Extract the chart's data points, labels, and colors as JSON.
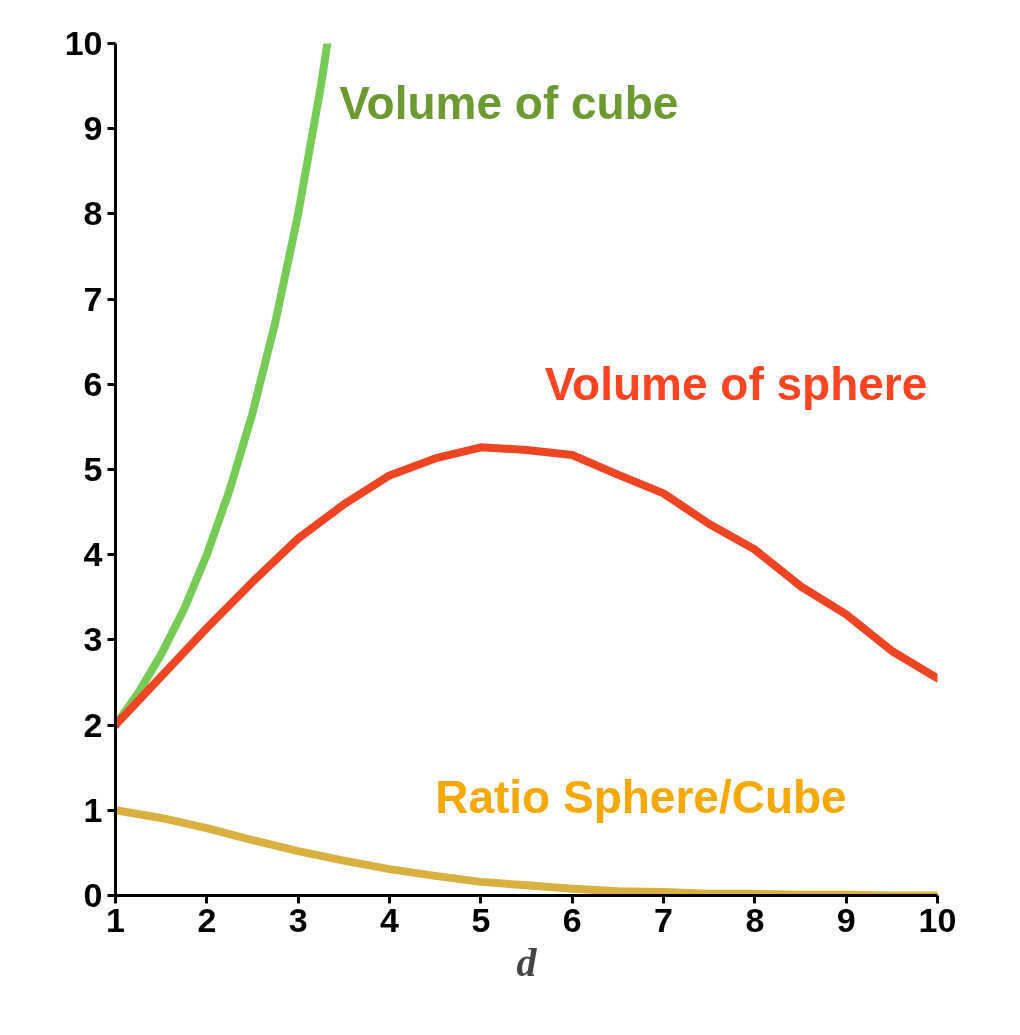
{
  "chart_data": {
    "type": "line",
    "xlabel": "d",
    "xlim": [
      1,
      10
    ],
    "ylim": [
      0,
      10
    ],
    "xticks": [
      1,
      2,
      3,
      4,
      5,
      6,
      7,
      8,
      9,
      10
    ],
    "yticks": [
      0,
      1,
      2,
      3,
      4,
      5,
      6,
      7,
      8,
      9,
      10
    ],
    "grid": false,
    "legend": false,
    "line_style": "solid",
    "marker": "none",
    "series": [
      {
        "name": "Volume of cube",
        "color": "#77cc55",
        "x": [
          1,
          1.25,
          1.5,
          1.75,
          2,
          2.25,
          2.5,
          2.75,
          3,
          3.25,
          3.32
        ],
        "values": [
          2,
          2.38,
          2.83,
          3.36,
          4,
          4.76,
          5.66,
          6.73,
          8,
          9.51,
          10
        ]
      },
      {
        "name": "Volume of sphere",
        "color": "#ee4422",
        "x": [
          1,
          1.5,
          2,
          2.5,
          3,
          3.5,
          4,
          4.5,
          5,
          5.5,
          6,
          6.5,
          7,
          7.5,
          8,
          8.5,
          9,
          9.5,
          10
        ],
        "values": [
          2,
          2.57,
          3.14,
          3.68,
          4.19,
          4.59,
          4.93,
          5.13,
          5.26,
          5.23,
          5.17,
          4.94,
          4.72,
          4.36,
          4.06,
          3.63,
          3.3,
          2.87,
          2.55
        ]
      },
      {
        "name": "Ratio Sphere/Cube",
        "color": "#d8b040",
        "x": [
          1,
          1.5,
          2,
          2.5,
          3,
          3.5,
          4,
          4.5,
          5,
          5.5,
          6,
          6.5,
          7,
          7.5,
          8,
          8.5,
          9,
          9.5,
          10
        ],
        "values": [
          1,
          0.91,
          0.79,
          0.65,
          0.52,
          0.41,
          0.31,
          0.23,
          0.16,
          0.12,
          0.08,
          0.05,
          0.04,
          0.02,
          0.02,
          0.01,
          0.01,
          0,
          0
        ]
      }
    ]
  }
}
